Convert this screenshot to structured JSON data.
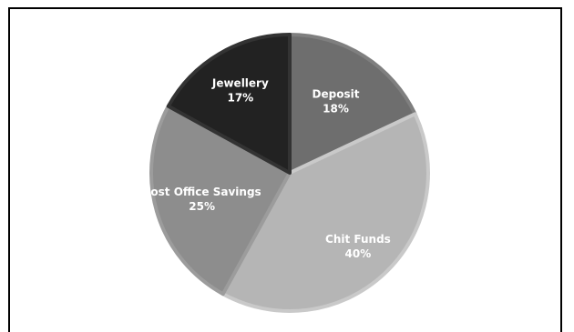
{
  "chart_data": {
    "type": "pie",
    "title": "",
    "slices": [
      {
        "label": "Deposit",
        "value": 18,
        "value_label": "18%",
        "color": "#6e6e6e",
        "edge": "#7f7f7f",
        "text_color": "#ffffff"
      },
      {
        "label": "Chit Funds",
        "value": 40,
        "value_label": "40%",
        "color": "#b5b5b5",
        "edge": "#c9c9c9",
        "text_color": "#ffffff"
      },
      {
        "label": "Post Office Savings",
        "value": 25,
        "value_label": "25%",
        "color": "#8d8d8d",
        "edge": "#9c9c9c",
        "text_color": "#ffffff"
      },
      {
        "label": "Jewellery",
        "value": 17,
        "value_label": "17%",
        "color": "#222222",
        "edge": "#333333",
        "text_color": "#ffffff"
      }
    ],
    "start_angle_deg": 0,
    "direction": "clockwise",
    "legend": "none"
  }
}
